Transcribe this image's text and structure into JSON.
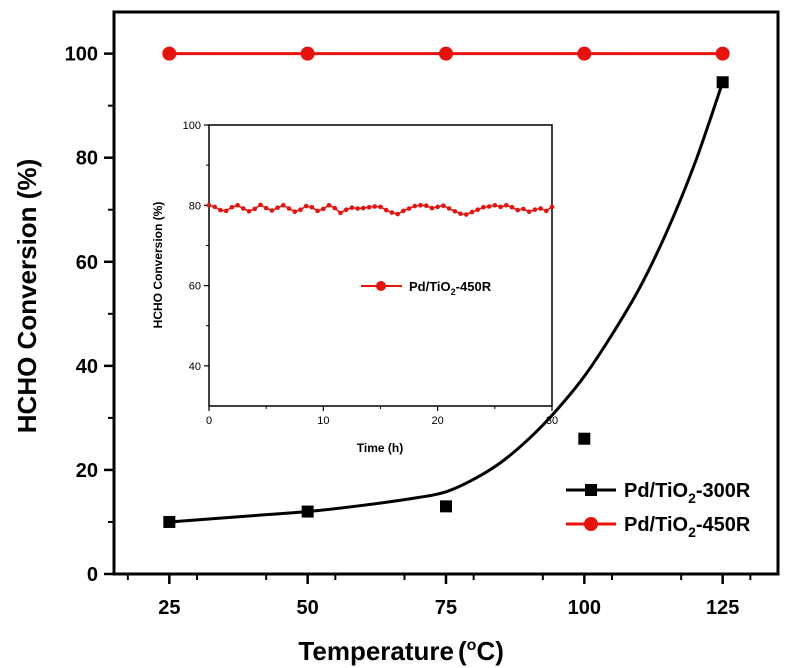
{
  "chart_data": [
    {
      "type": "line",
      "xlabel": "Temperature",
      "xlabel_unit": "(°C)",
      "ylabel": "HCHO Conversion (%)",
      "xlim": [
        15,
        135
      ],
      "ylim": [
        0,
        108
      ],
      "x_ticks": [
        25,
        50,
        75,
        100,
        125
      ],
      "y_ticks": [
        0,
        20,
        40,
        60,
        80,
        100
      ],
      "legend_position": "bottom-right",
      "series": [
        {
          "name": "Pd/TiO2-300R",
          "name_base": "Pd/TiO",
          "name_sub": "2",
          "name_suffix": "-300R",
          "color": "#000000",
          "marker": "square",
          "x": [
            25,
            50,
            75,
            100,
            125
          ],
          "y": [
            10,
            12,
            13,
            26,
            94.5
          ],
          "fit_curve": {
            "x": [
              25,
              40,
              50,
              60,
              70,
              75,
              80,
              85,
              90,
              95,
              100,
              105,
              110,
              115,
              120,
              125
            ],
            "y": [
              10,
              11.2,
              12,
              13.2,
              14.7,
              15.8,
              18.2,
              21.5,
              26,
              31.5,
              38,
              46,
              55,
              66,
              79,
              94.5
            ]
          }
        },
        {
          "name": "Pd/TiO2-450R",
          "name_base": "Pd/TiO",
          "name_sub": "2",
          "name_suffix": "-450R",
          "color": "#e8120c",
          "marker": "circle",
          "x": [
            25,
            50,
            75,
            100,
            125
          ],
          "y": [
            100,
            100,
            100,
            100,
            100
          ]
        }
      ]
    },
    {
      "type": "line",
      "inset": true,
      "xlabel": "Time (h)",
      "ylabel": "HCHO Conversion (%)",
      "xlim": [
        0,
        30
      ],
      "ylim": [
        30,
        100
      ],
      "x_ticks": [
        0,
        10,
        20,
        30
      ],
      "y_ticks": [
        40,
        60,
        80,
        100
      ],
      "legend_position": "center",
      "series": [
        {
          "name": "Pd/TiO2-450R",
          "name_base": "Pd/TiO",
          "name_sub": "2",
          "name_suffix": "-450R",
          "color": "#e8120c",
          "marker": "circle",
          "x": [
            0,
            0.5,
            1,
            1.5,
            2,
            2.5,
            3,
            3.5,
            4,
            4.5,
            5,
            5.5,
            6,
            6.5,
            7,
            7.5,
            8,
            8.5,
            9,
            9.5,
            10,
            10.5,
            11,
            11.5,
            12,
            12.5,
            13,
            13.5,
            14,
            14.5,
            15,
            15.5,
            16,
            16.5,
            17,
            17.5,
            18,
            18.5,
            19,
            19.5,
            20,
            20.5,
            21,
            21.5,
            22,
            22.5,
            23,
            23.5,
            24,
            24.5,
            25,
            25.5,
            26,
            26.5,
            27,
            27.5,
            28,
            28.5,
            29,
            29.5,
            30
          ],
          "y": [
            80,
            79.6,
            78.8,
            78.6,
            79.5,
            80,
            79.2,
            78.5,
            79.1,
            80.1,
            79.3,
            78.7,
            79.4,
            80,
            79.2,
            78.4,
            78.9,
            79.8,
            79.5,
            78.6,
            79.1,
            80,
            79.3,
            78.1,
            78.9,
            79.4,
            79.2,
            79.3,
            79.5,
            79.7,
            79.6,
            78.8,
            78.2,
            77.8,
            78.6,
            79.2,
            79.8,
            80,
            79.9,
            79.3,
            79.6,
            79.9,
            79.2,
            78.5,
            77.9,
            77.7,
            78.3,
            78.9,
            79.5,
            79.7,
            80,
            79.6,
            80,
            79.5,
            78.8,
            79.1,
            78.4,
            78.9,
            79.2,
            78.6,
            79.6
          ]
        }
      ]
    }
  ]
}
